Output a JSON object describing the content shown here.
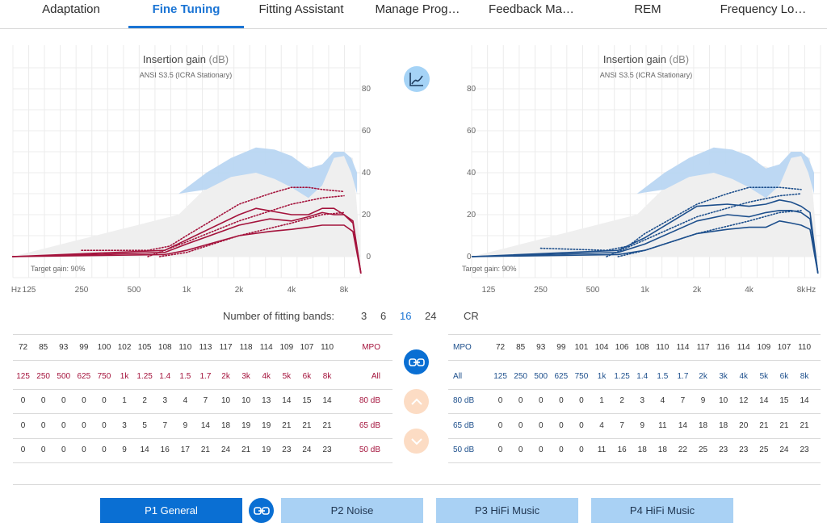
{
  "tabs": [
    "Adaptation",
    "Fine Tuning",
    "Fitting Assistant",
    "Manage Prog…",
    "Feedback Ma…",
    "REM",
    "Frequency Lo…"
  ],
  "active_tab": "Fine Tuning",
  "chart_data": [
    {
      "type": "line",
      "side": "left",
      "title": "Insertion gain",
      "title_unit": "(dB)",
      "subtitle": "ANSI S3.5 (ICRA Stationary)",
      "footnote": "Target gain: 90%",
      "x_scale": "log",
      "x_ticks": [
        "125",
        "250",
        "500",
        "1k",
        "2k",
        "4k",
        "8k"
      ],
      "x_unit": "Hz",
      "y_ticks": [
        "0",
        "20",
        "40",
        "60",
        "80"
      ],
      "ylim": [
        -10,
        90
      ],
      "y_axis_position": "right",
      "line_color": "#a4133c",
      "series": [
        {
          "style": "solid",
          "x": [
            100,
            750,
            1000,
            2000,
            2500,
            4000,
            5000,
            6000,
            7000,
            8000,
            9000,
            10000
          ],
          "y": [
            0,
            3,
            8,
            20,
            23,
            20,
            20,
            23,
            23,
            20,
            17,
            -8
          ]
        },
        {
          "style": "solid",
          "x": [
            100,
            750,
            1000,
            2000,
            3000,
            4000,
            5000,
            6000,
            7000,
            8000,
            9000,
            10000
          ],
          "y": [
            0,
            2,
            6,
            15,
            18,
            17,
            19,
            21,
            20,
            20,
            16,
            -8
          ]
        },
        {
          "style": "solid",
          "x": [
            100,
            750,
            1000,
            2000,
            3000,
            4000,
            5000,
            6000,
            7000,
            8000,
            9000,
            10000
          ],
          "y": [
            0,
            1,
            3,
            10,
            12,
            13,
            14,
            15,
            15,
            15,
            12,
            -8
          ]
        },
        {
          "style": "dotted",
          "x": [
            250,
            600,
            800,
            1000,
            2000,
            3000,
            4000,
            5000,
            6000,
            8000
          ],
          "y": [
            3,
            3,
            5,
            10,
            25,
            30,
            33,
            33,
            32,
            31
          ]
        },
        {
          "style": "dotted",
          "x": [
            600,
            1000,
            2000,
            4000,
            6000,
            8000
          ],
          "y": [
            0,
            7,
            17,
            25,
            28,
            29
          ]
        },
        {
          "style": "dotted",
          "x": [
            700,
            1000,
            2000,
            4000,
            6000,
            8000
          ],
          "y": [
            0,
            2,
            10,
            16,
            20,
            21
          ]
        }
      ]
    },
    {
      "type": "line",
      "side": "right",
      "title": "Insertion gain",
      "title_unit": "(dB)",
      "subtitle": "ANSI S3.5 (ICRA Stationary)",
      "footnote": "Target gain: 90%",
      "x_scale": "log",
      "x_ticks": [
        "125",
        "250",
        "500",
        "1k",
        "2k",
        "4k",
        "8k"
      ],
      "x_unit": "Hz",
      "y_ticks": [
        "0",
        "20",
        "40",
        "60",
        "80"
      ],
      "ylim": [
        -10,
        90
      ],
      "y_axis_position": "left",
      "line_color": "#1d4f8c",
      "series": [
        {
          "style": "solid",
          "x": [
            100,
            700,
            1000,
            2000,
            3000,
            4000,
            5000,
            6000,
            7000,
            8000,
            9000,
            10000
          ],
          "y": [
            0,
            3,
            9,
            24,
            25,
            24,
            25,
            27,
            26,
            24,
            21,
            -8
          ]
        },
        {
          "style": "solid",
          "x": [
            100,
            700,
            1000,
            2000,
            3000,
            4000,
            5000,
            6000,
            7000,
            8000,
            9000,
            10000
          ],
          "y": [
            0,
            2,
            6,
            17,
            20,
            19,
            21,
            22,
            22,
            21,
            18,
            -8
          ]
        },
        {
          "style": "solid",
          "x": [
            100,
            700,
            1000,
            2000,
            3000,
            4000,
            5000,
            6000,
            7000,
            8000,
            9000,
            10000
          ],
          "y": [
            0,
            1,
            3,
            11,
            13,
            14,
            14,
            17,
            16,
            15,
            13,
            -8
          ]
        },
        {
          "style": "dotted",
          "x": [
            250,
            600,
            800,
            1000,
            2000,
            3000,
            4000,
            5000,
            6000,
            8000
          ],
          "y": [
            4,
            3,
            5,
            11,
            25,
            30,
            33,
            33,
            33,
            32
          ]
        },
        {
          "style": "dotted",
          "x": [
            600,
            1000,
            2000,
            4000,
            6000,
            8000
          ],
          "y": [
            0,
            8,
            19,
            26,
            29,
            30
          ]
        },
        {
          "style": "dotted",
          "x": [
            700,
            1000,
            2000,
            4000,
            6000,
            8000
          ],
          "y": [
            0,
            3,
            11,
            17,
            21,
            22
          ]
        }
      ]
    }
  ],
  "chart_toggle_icon": "curve-view-icon",
  "fitting_bands": {
    "label": "Number of fitting bands:",
    "options": [
      "3",
      "6",
      "16",
      "24"
    ],
    "selected": "16",
    "cr_label": "CR"
  },
  "left_table": {
    "mpo_label": "MPO",
    "mpo": [
      "72",
      "85",
      "93",
      "99",
      "100",
      "102",
      "105",
      "108",
      "110",
      "113",
      "117",
      "118",
      "114",
      "109",
      "107",
      "110"
    ],
    "freq_label": "All",
    "freqs": [
      "125",
      "250",
      "500",
      "625",
      "750",
      "1k",
      "1.25",
      "1.4",
      "1.5",
      "1.7",
      "2k",
      "3k",
      "4k",
      "5k",
      "6k",
      "8k"
    ],
    "rows": [
      {
        "label": "80 dB",
        "values": [
          "0",
          "0",
          "0",
          "0",
          "0",
          "1",
          "2",
          "3",
          "4",
          "7",
          "10",
          "10",
          "13",
          "14",
          "15",
          "14"
        ]
      },
      {
        "label": "65 dB",
        "values": [
          "0",
          "0",
          "0",
          "0",
          "0",
          "3",
          "5",
          "7",
          "9",
          "14",
          "18",
          "19",
          "19",
          "21",
          "21",
          "21"
        ]
      },
      {
        "label": "50 dB",
        "values": [
          "0",
          "0",
          "0",
          "0",
          "0",
          "9",
          "14",
          "16",
          "17",
          "21",
          "24",
          "21",
          "19",
          "23",
          "24",
          "23"
        ]
      }
    ]
  },
  "right_table": {
    "mpo_label": "MPO",
    "mpo": [
      "72",
      "85",
      "93",
      "99",
      "101",
      "104",
      "106",
      "108",
      "110",
      "114",
      "117",
      "116",
      "114",
      "109",
      "107",
      "110"
    ],
    "freq_label": "All",
    "freqs": [
      "125",
      "250",
      "500",
      "625",
      "750",
      "1k",
      "1.25",
      "1.4",
      "1.5",
      "1.7",
      "2k",
      "3k",
      "4k",
      "5k",
      "6k",
      "8k"
    ],
    "rows": [
      {
        "label": "80 dB",
        "values": [
          "0",
          "0",
          "0",
          "0",
          "0",
          "1",
          "2",
          "3",
          "4",
          "7",
          "9",
          "10",
          "12",
          "14",
          "15",
          "14"
        ]
      },
      {
        "label": "65 dB",
        "values": [
          "0",
          "0",
          "0",
          "0",
          "0",
          "4",
          "7",
          "9",
          "11",
          "14",
          "18",
          "18",
          "20",
          "21",
          "21",
          "21"
        ]
      },
      {
        "label": "50 dB",
        "values": [
          "0",
          "0",
          "0",
          "0",
          "0",
          "11",
          "16",
          "18",
          "18",
          "22",
          "25",
          "23",
          "23",
          "25",
          "24",
          "23"
        ]
      }
    ]
  },
  "center_controls": {
    "link_icon": "link-icon",
    "up_icon": "chevron-up-icon",
    "down_icon": "chevron-down-icon"
  },
  "programs": [
    {
      "label": "P1  General",
      "active": true
    },
    {
      "label": "P2  Noise",
      "active": false
    },
    {
      "label": "P3  HiFi Music",
      "active": false
    },
    {
      "label": "P4  HiFi Music",
      "active": false
    }
  ],
  "colors": {
    "accent": "#1a74d4",
    "left_ear": "#a4133c",
    "right_ear": "#1d4f8c",
    "active_button": "#0a6fd3",
    "inactive_button": "#a9d1f4",
    "speech_area": "#b9d6f2",
    "target_area": "#ededed",
    "disabled_button": "#fbd9bf"
  }
}
